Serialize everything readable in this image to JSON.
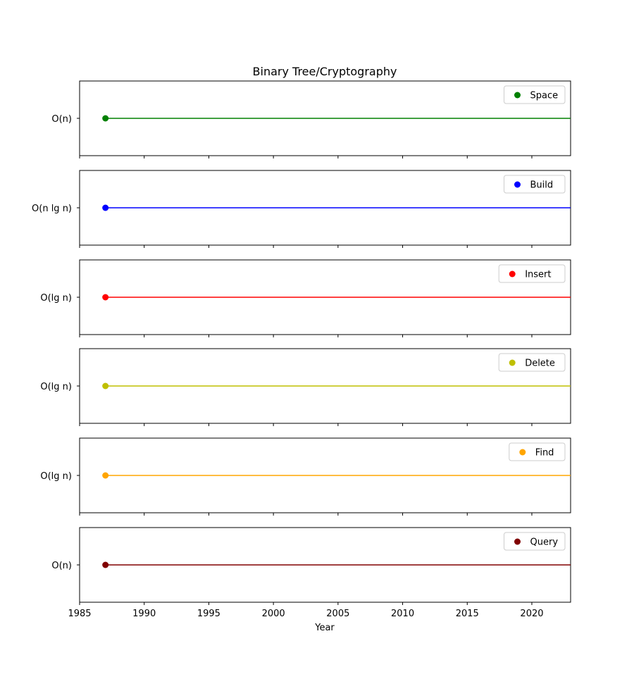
{
  "chart_data": {
    "type": "line",
    "title": "Binary Tree/Cryptography",
    "xlabel": "Year",
    "xlim": [
      1985,
      2023
    ],
    "x_ticks": [
      1985,
      1990,
      1995,
      2000,
      2005,
      2010,
      2015,
      2020
    ],
    "x_tick_labels": [
      "1985",
      "1990",
      "1995",
      "2000",
      "2005",
      "2010",
      "2015",
      "2020"
    ],
    "grid": false,
    "legend_placement": "upper right",
    "series": [
      {
        "name": "Space",
        "ytick_label": "O(n)",
        "x": [
          1987,
          2023
        ],
        "color": "#008000"
      },
      {
        "name": "Build",
        "ytick_label": "O(n lg n)",
        "x": [
          1987,
          2023
        ],
        "color": "#0000ff"
      },
      {
        "name": "Insert",
        "ytick_label": "O(lg n)",
        "x": [
          1987,
          2023
        ],
        "color": "#ff0000"
      },
      {
        "name": "Delete",
        "ytick_label": "O(lg n)",
        "x": [
          1987,
          2023
        ],
        "color": "#bfbf00"
      },
      {
        "name": "Find",
        "ytick_label": "O(lg n)",
        "x": [
          1987,
          2023
        ],
        "color": "#ffa500"
      },
      {
        "name": "Query",
        "ytick_label": "O(n)",
        "x": [
          1987,
          2023
        ],
        "color": "#800000"
      }
    ]
  }
}
